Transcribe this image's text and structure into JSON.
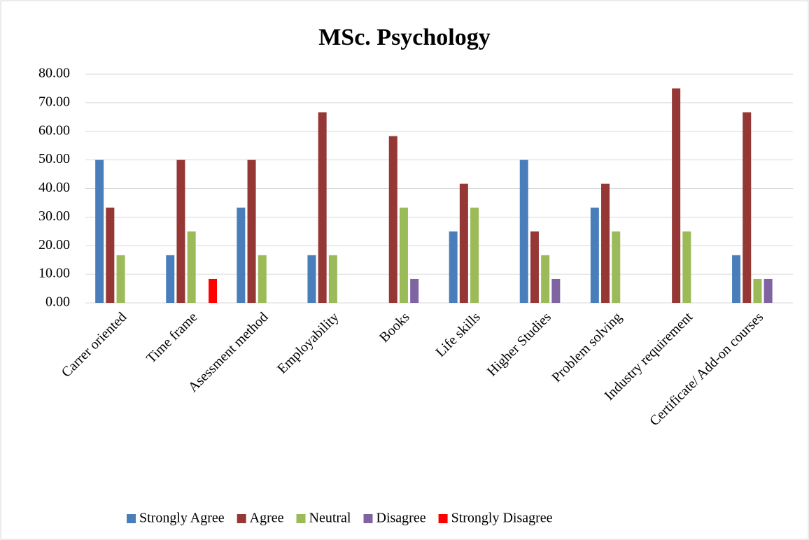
{
  "chart_data": {
    "type": "bar",
    "title": "MSc. Psychology",
    "categories": [
      "Carrer oriented",
      "Time frame",
      "Asessment method",
      "Employability",
      "Books",
      "Life skills",
      "Higher Studies",
      "Problem solving",
      "Industry requirement",
      "Certificate/ Add-on courses"
    ],
    "series": [
      {
        "name": "Strongly Agree",
        "color": "#4a7ebb",
        "values": [
          50,
          16.67,
          33.33,
          16.67,
          0,
          25,
          50,
          33.33,
          0,
          16.67
        ]
      },
      {
        "name": "Agree",
        "color": "#953735",
        "values": [
          33.33,
          50,
          50,
          66.67,
          58.33,
          41.67,
          25,
          41.67,
          75,
          66.67
        ]
      },
      {
        "name": "Neutral",
        "color": "#9bbb59",
        "values": [
          16.67,
          25,
          16.67,
          16.67,
          33.33,
          33.33,
          16.67,
          25,
          25,
          8.33
        ]
      },
      {
        "name": "Disagree",
        "color": "#8064a2",
        "values": [
          0,
          0,
          0,
          0,
          8.33,
          0,
          8.33,
          0,
          0,
          8.33
        ]
      },
      {
        "name": "Strongly Disagree",
        "color": "#ff0000",
        "values": [
          0,
          8.33,
          0,
          0,
          0,
          0,
          0,
          0,
          0,
          0
        ]
      }
    ],
    "ylim": [
      0,
      80
    ],
    "yticks": [
      {
        "value": 0,
        "label": "0.00"
      },
      {
        "value": 10,
        "label": "10.00"
      },
      {
        "value": 20,
        "label": "20.00"
      },
      {
        "value": 30,
        "label": "30.00"
      },
      {
        "value": 40,
        "label": "40.00"
      },
      {
        "value": 50,
        "label": "50.00"
      },
      {
        "value": 60,
        "label": "60.00"
      },
      {
        "value": 70,
        "label": "70.00"
      },
      {
        "value": 80,
        "label": "80.00"
      }
    ],
    "grid": true
  }
}
